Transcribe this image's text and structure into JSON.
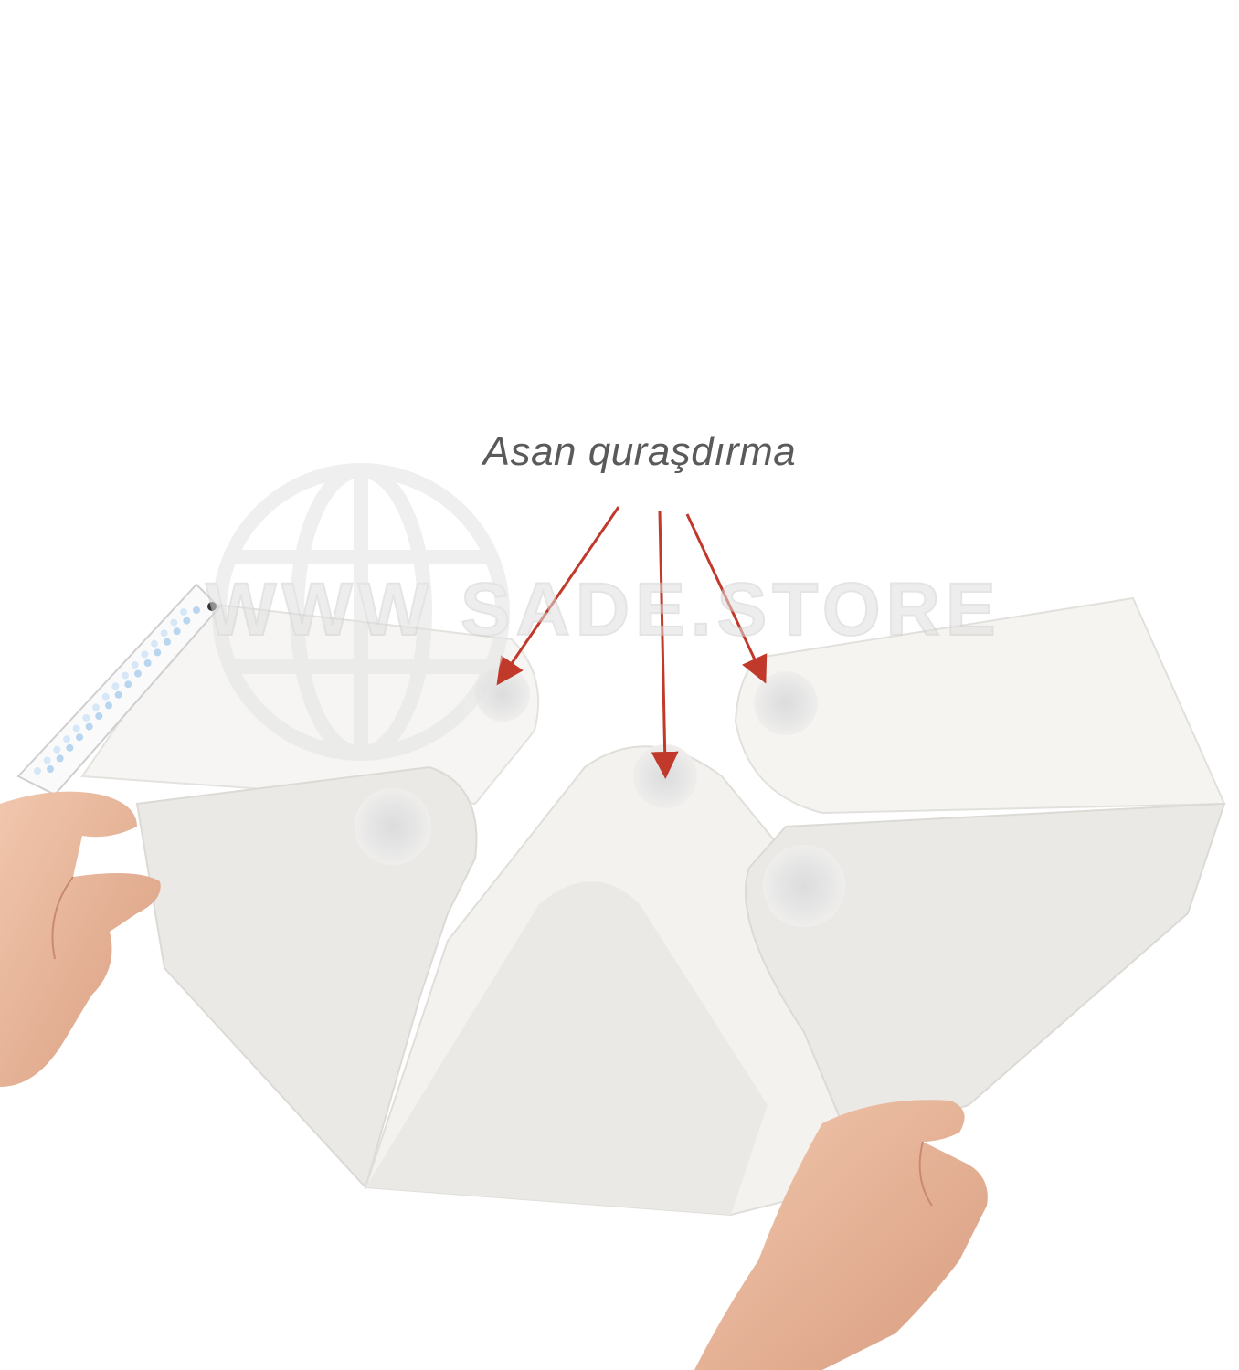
{
  "caption": "Asan quraşdırma",
  "watermark": {
    "text": "WWW SADE.STORE",
    "logo": "globe-icon"
  },
  "colors": {
    "background": "#ffffff",
    "panel": "#f3f1ee",
    "panel_shadow": "#e3e1dc",
    "arrow": "#c0392b",
    "skin": "#e9b8a0",
    "caption_text": "#5a5a5a"
  },
  "objects": [
    "foldable-light-box",
    "led-strip",
    "suction-cups",
    "left-hand",
    "right-hand"
  ]
}
